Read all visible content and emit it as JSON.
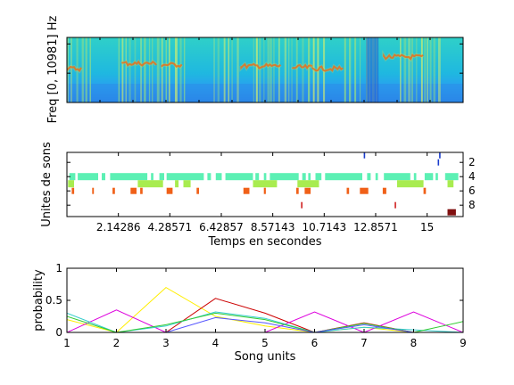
{
  "chart_data": [
    {
      "type": "heatmap",
      "ylabel": "Freq [0, 10981] Hz",
      "grid": false
    },
    {
      "type": "scatter",
      "xlabel": "Temps en secondes",
      "ylabel": "Unites de sons",
      "xlim": [
        0,
        16.5
      ],
      "ylim": [
        9.6,
        0.6
      ],
      "x_tick_labels": [
        "2.14286",
        "4.28571",
        "6.42857",
        "8.57143",
        "10.7143",
        "12.8571",
        "15"
      ],
      "x_ticks": [
        2.14286,
        4.28571,
        6.42857,
        8.57143,
        10.7143,
        12.8571,
        15
      ],
      "y_tick_labels": [
        "2",
        "4",
        "6",
        "8"
      ],
      "y_ticks": [
        2,
        4,
        6,
        8
      ],
      "units": [
        {
          "unit": 1,
          "color": "#1a3ccc",
          "segments": [
            [
              12.36,
              12.42
            ],
            [
              15.5,
              15.56
            ]
          ]
        },
        {
          "unit": 2,
          "color": "#1a3ccc",
          "segments": [
            [
              15.44,
              15.5
            ]
          ]
        },
        {
          "unit": 4,
          "color": "#5cf0b4",
          "segments": [
            [
              0.1,
              0.35
            ],
            [
              0.45,
              1.3
            ],
            [
              1.45,
              1.6
            ],
            [
              1.8,
              3.35
            ],
            [
              3.5,
              3.6
            ],
            [
              3.85,
              4.05
            ],
            [
              4.15,
              5.7
            ],
            [
              5.85,
              6.0
            ],
            [
              6.2,
              6.45
            ],
            [
              6.6,
              7.75
            ],
            [
              7.85,
              8.0
            ],
            [
              8.2,
              8.3
            ],
            [
              8.45,
              9.65
            ],
            [
              9.8,
              9.95
            ],
            [
              10.05,
              10.15
            ],
            [
              10.35,
              10.6
            ],
            [
              10.75,
              12.3
            ],
            [
              12.5,
              12.65
            ],
            [
              12.85,
              12.95
            ],
            [
              13.2,
              14.3
            ],
            [
              14.45,
              14.55
            ],
            [
              14.9,
              15.25
            ],
            [
              15.35,
              15.45
            ],
            [
              15.75,
              16.3
            ]
          ]
        },
        {
          "unit": 5,
          "color": "#a8ec50",
          "segments": [
            [
              0.05,
              0.3
            ],
            [
              2.95,
              4.0
            ],
            [
              4.5,
              4.65
            ],
            [
              4.85,
              5.15
            ],
            [
              7.75,
              8.75
            ],
            [
              9.6,
              10.5
            ],
            [
              13.75,
              14.85
            ],
            [
              15.85,
              16.1
            ]
          ]
        },
        {
          "unit": 6,
          "color": "#f06018",
          "segments": [
            [
              0.2,
              0.3
            ],
            [
              1.05,
              1.12
            ],
            [
              1.9,
              2.0
            ],
            [
              2.65,
              2.9
            ],
            [
              3.05,
              3.15
            ],
            [
              4.15,
              4.4
            ],
            [
              5.4,
              5.5
            ],
            [
              7.35,
              7.6
            ],
            [
              8.2,
              8.28
            ],
            [
              9.55,
              9.65
            ],
            [
              9.9,
              10.15
            ],
            [
              11.65,
              11.75
            ],
            [
              12.2,
              12.55
            ],
            [
              13.15,
              13.3
            ],
            [
              14.85,
              14.95
            ]
          ]
        },
        {
          "unit": 8,
          "color": "#cc1010",
          "segments": [
            [
              9.75,
              9.8
            ],
            [
              13.65,
              13.7
            ]
          ]
        },
        {
          "unit": 9,
          "color": "#801010",
          "segments": [
            [
              15.85,
              16.2
            ]
          ]
        }
      ]
    },
    {
      "type": "line",
      "xlabel": "Song units",
      "ylabel": "probability",
      "xlim": [
        1,
        9
      ],
      "ylim": [
        0,
        1
      ],
      "x": [
        1,
        2,
        3,
        4,
        5,
        6,
        7,
        8,
        9
      ],
      "x_tick_labels": [
        "1",
        "2",
        "3",
        "4",
        "5",
        "6",
        "7",
        "8",
        "9"
      ],
      "y_tick_labels": [
        "0",
        "0.5",
        "1"
      ],
      "y_ticks": [
        0,
        0.5,
        1
      ],
      "series": [
        {
          "color": "#ffee00",
          "values": [
            0.2,
            0.0,
            0.7,
            0.25,
            0.1,
            0.0,
            0.08,
            0.0,
            0.0
          ]
        },
        {
          "color": "#cc0000",
          "values": [
            0.0,
            0.0,
            0.0,
            0.53,
            0.3,
            0.0,
            0.15,
            0.0,
            0.0
          ]
        },
        {
          "color": "#dd00dd",
          "values": [
            0.0,
            0.35,
            0.0,
            0.0,
            0.0,
            0.32,
            0.0,
            0.32,
            0.0
          ]
        },
        {
          "color": "#33cccc",
          "values": [
            0.3,
            0.0,
            0.1,
            0.32,
            0.22,
            0.0,
            0.08,
            0.04,
            0.0
          ]
        },
        {
          "color": "#33cc33",
          "values": [
            0.25,
            0.0,
            0.12,
            0.3,
            0.2,
            0.0,
            0.14,
            0.0,
            0.17
          ]
        },
        {
          "color": "#5555ff",
          "values": [
            0.0,
            0.0,
            0.0,
            0.23,
            0.15,
            0.0,
            0.12,
            0.0,
            0.0
          ]
        }
      ]
    }
  ]
}
